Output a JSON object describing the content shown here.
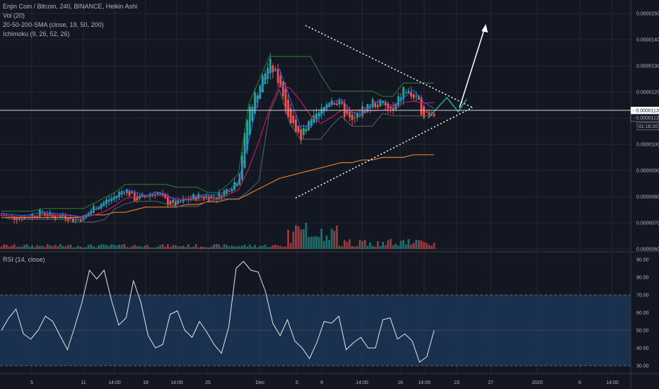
{
  "header": {
    "title": "Enjin Coin / Bitcoin, 240, BINANCE, Heikin Ashi",
    "indicator_vol": "Vol (20)",
    "indicator_sma": "20-50-200-SMA (close, 19, 50, 200)",
    "indicator_ichimoku": "Ichimoku (9, 26, 52, 26)",
    "indicator_rsi": "RSI (14, close)"
  },
  "price_axis": {
    "ticks": [
      "0.00001500",
      "0.00001400",
      "0.00001300",
      "0.00001200",
      "0.00001100",
      "0.00001000",
      "0.00000900",
      "0.00000800",
      "0.00000700",
      "0.00000600"
    ],
    "current_price_label": "0.00001130",
    "cursor_price_label": "0.00001120",
    "countdown_label": "01:16:20"
  },
  "rsi_axis": {
    "ticks": [
      "90.00",
      "80.00",
      "70.00",
      "60.00",
      "50.00",
      "40.00",
      "30.00"
    ]
  },
  "time_axis": {
    "labels": [
      "5",
      "11",
      "14:00",
      "18",
      "14:00",
      "25",
      "Dec",
      "5",
      "9",
      "14:00",
      "16",
      "14:00",
      "23",
      "27",
      "2020",
      "6",
      "14:00"
    ]
  },
  "colors": {
    "background": "#131722",
    "bull": "#26a69a",
    "bear": "#ef5350",
    "rsi_band": "#1e3a5f",
    "grid": "#242733",
    "sma_orange": "#e37a2b",
    "sma_red": "#c2185b",
    "sma_blue": "#2962ff"
  },
  "chart_data": [
    {
      "type": "line",
      "title": "Enjin Coin / Bitcoin, 240, BINANCE, Heikin Ashi",
      "series": [
        {
          "name": "Heikin Ashi close",
          "values": [
            7.3e-06,
            7.2e-06,
            7.2e-06,
            7.3e-06,
            7.4e-06,
            7.2e-06,
            7.3e-06,
            7.1e-06,
            7.2e-06,
            7.6e-06,
            7.8e-06,
            8e-06,
            8.3e-06,
            7.9e-06,
            8e-06,
            8.2e-06,
            7.8e-06,
            7.7e-06,
            7.9e-06,
            8e-06,
            8e-06,
            8e-06,
            8.3e-06,
            8.7e-06,
            1.13e-05,
            1.22e-05,
            1.31e-05,
            1.24e-05,
            1.09e-05,
            1.03e-05,
            1.08e-05,
            1.12e-05,
            1.18e-05,
            1.14e-05,
            1.08e-05,
            1.13e-05,
            1.16e-05,
            1.15e-05,
            1.12e-05,
            1.21e-05,
            1.18e-05,
            1.12e-05,
            1.13e-05
          ]
        },
        {
          "name": "SMA 200",
          "values": [
            7.2e-06,
            7.2e-06,
            7.2e-06,
            7.2e-06,
            7.2e-06,
            7.2e-06,
            7.2e-06,
            7.2e-06,
            7.2e-06,
            7.3e-06,
            7.3e-06,
            7.4e-06,
            7.4e-06,
            7.5e-06,
            7.6e-06,
            7.6e-06,
            7.6e-06,
            7.6e-06,
            7.7e-06,
            7.7e-06,
            7.8e-06,
            7.8e-06,
            7.9e-06,
            7.9e-06,
            8.1e-06,
            8.3e-06,
            8.5e-06,
            8.7e-06,
            8.8e-06,
            8.9e-06,
            9e-06,
            9.1e-06,
            9.2e-06,
            9.3e-06,
            9.3e-06,
            9.4e-06,
            9.4e-06,
            9.5e-06,
            9.5e-06,
            9.5e-06,
            9.6e-06,
            9.6e-06,
            9.6e-06
          ]
        }
      ],
      "annotations": [
        "symmetrical triangle",
        "breakout arrow"
      ],
      "ylim": [
        6e-06,
        1.53e-05
      ],
      "grid": true
    },
    {
      "type": "line",
      "title": "RSI (14, close)",
      "series": [
        {
          "name": "RSI",
          "values": [
            50,
            57,
            62,
            48,
            45,
            50,
            58,
            55,
            47,
            39,
            52,
            66,
            84,
            79,
            84,
            67,
            53,
            57,
            78,
            66,
            47,
            40,
            42,
            59,
            61,
            50,
            46,
            55,
            49,
            42,
            37,
            52,
            85,
            89,
            84,
            83,
            72,
            54,
            47,
            56,
            44,
            40,
            34,
            43,
            55,
            54,
            58,
            39,
            43,
            46,
            40,
            40,
            56,
            57,
            45,
            48,
            44,
            32,
            35,
            50
          ]
        }
      ],
      "ylim": [
        28,
        92
      ],
      "bands": [
        70,
        30
      ],
      "grid": true
    }
  ]
}
